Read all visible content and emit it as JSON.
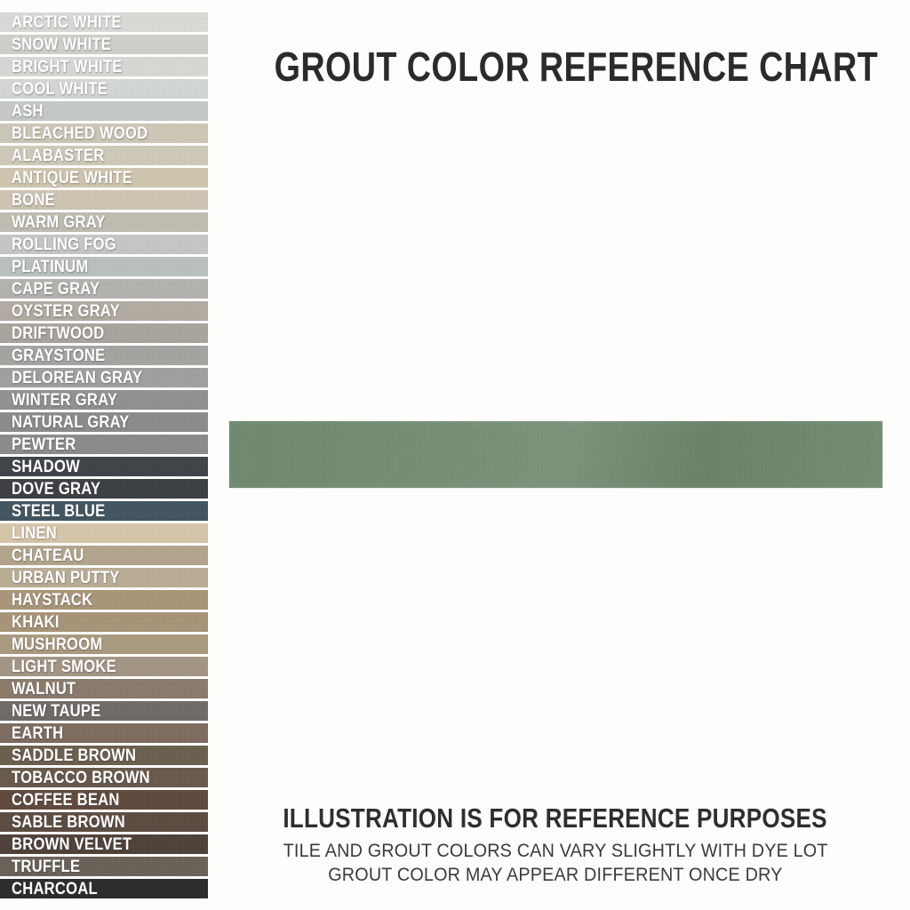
{
  "page": {
    "title": "GROUT COLOR REFERENCE CHART",
    "background_color": "#fdfdfc"
  },
  "swatches": [
    {
      "name": "ARCTIC WHITE",
      "color": "#d8d9d5"
    },
    {
      "name": "SNOW WHITE",
      "color": "#cfcdc8"
    },
    {
      "name": "BRIGHT WHITE",
      "color": "#d6d6d2"
    },
    {
      "name": "COOL WHITE",
      "color": "#d1d6d5"
    },
    {
      "name": "ASH",
      "color": "#c3c7c6"
    },
    {
      "name": "BLEACHED WOOD",
      "color": "#ccc6b7"
    },
    {
      "name": "ALABASTER",
      "color": "#cec8b9"
    },
    {
      "name": "ANTIQUE WHITE",
      "color": "#cec4ae"
    },
    {
      "name": "BONE",
      "color": "#ccc3b1"
    },
    {
      "name": "WARM GRAY",
      "color": "#bebbb1"
    },
    {
      "name": "ROLLING FOG",
      "color": "#c3c6c3"
    },
    {
      "name": "PLATINUM",
      "color": "#b9bebe"
    },
    {
      "name": "CAPE GRAY",
      "color": "#b3b1ac"
    },
    {
      "name": "OYSTER GRAY",
      "color": "#b1aaa0"
    },
    {
      "name": "DRIFTWOOD",
      "color": "#a8a49d"
    },
    {
      "name": "GRAYSTONE",
      "color": "#a3a3a0"
    },
    {
      "name": "DELOREAN GRAY",
      "color": "#9fa09d"
    },
    {
      "name": "WINTER GRAY",
      "color": "#8f918e"
    },
    {
      "name": "NATURAL GRAY",
      "color": "#8b8c89"
    },
    {
      "name": "PEWTER",
      "color": "#8a8c8b"
    },
    {
      "name": "SHADOW",
      "color": "#3f4448"
    },
    {
      "name": "DOVE GRAY",
      "color": "#3c4043"
    },
    {
      "name": "STEEL BLUE",
      "color": "#425560"
    },
    {
      "name": "LINEN",
      "color": "#d4c5a9"
    },
    {
      "name": "CHATEAU",
      "color": "#b2a38d"
    },
    {
      "name": "URBAN PUTTY",
      "color": "#b9ac94"
    },
    {
      "name": "HAYSTACK",
      "color": "#a89579"
    },
    {
      "name": "KHAKI",
      "color": "#a79377"
    },
    {
      "name": "MUSHROOM",
      "color": "#a8997f"
    },
    {
      "name": "LIGHT SMOKE",
      "color": "#a39584"
    },
    {
      "name": "WALNUT",
      "color": "#8a7a6a"
    },
    {
      "name": "NEW TAUPE",
      "color": "#6f6a66"
    },
    {
      "name": "EARTH",
      "color": "#7d6c5f"
    },
    {
      "name": "SADDLE BROWN",
      "color": "#6b5f4e"
    },
    {
      "name": "TOBACCO BROWN",
      "color": "#68594c"
    },
    {
      "name": "COFFEE BEAN",
      "color": "#5f4a3d"
    },
    {
      "name": "SABLE BROWN",
      "color": "#5c4c42"
    },
    {
      "name": "BROWN VELVET",
      "color": "#4f423a"
    },
    {
      "name": "TRUFFLE",
      "color": "#6a6158"
    },
    {
      "name": "CHARCOAL",
      "color": "#2c2c2e"
    }
  ],
  "featured_swatch": {
    "description": "selected grout color sample tile",
    "color": "#6e876d"
  },
  "footer": {
    "heading": "ILLUSTRATION IS FOR REFERENCE PURPOSES",
    "line1": "TILE AND GROUT COLORS CAN VARY SLIGHTLY WITH DYE LOT",
    "line2": "GROUT COLOR MAY APPEAR DIFFERENT ONCE DRY"
  }
}
